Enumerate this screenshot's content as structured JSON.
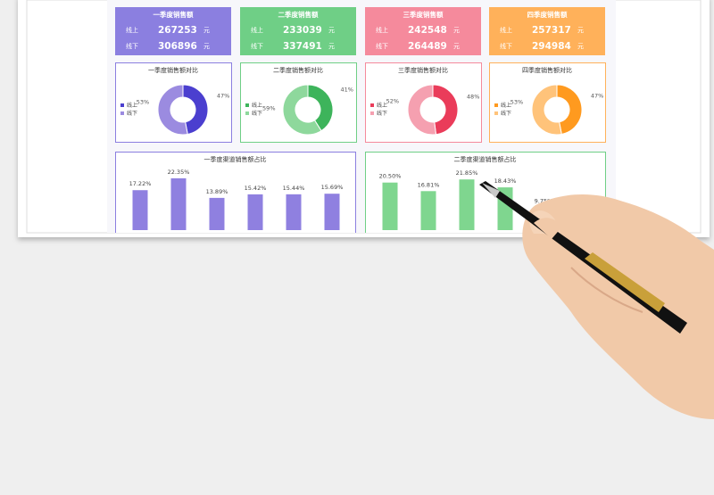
{
  "cards": [
    {
      "title": "一季度销售额",
      "color": "#8b7fe0",
      "rows": [
        {
          "label": "线上",
          "value": 267253,
          "unit": "元"
        },
        {
          "label": "线下",
          "value": 306896,
          "unit": "元"
        }
      ]
    },
    {
      "title": "二季度销售额",
      "color": "#6fcf86",
      "rows": [
        {
          "label": "线上",
          "value": 233039,
          "unit": "元"
        },
        {
          "label": "线下",
          "value": 337491,
          "unit": "元"
        }
      ]
    },
    {
      "title": "三季度销售额",
      "color": "#f58a9c",
      "rows": [
        {
          "label": "线上",
          "value": 242548,
          "unit": "元"
        },
        {
          "label": "线下",
          "value": 264489,
          "unit": "元"
        }
      ]
    },
    {
      "title": "四季度销售额",
      "color": "#ffb15a",
      "rows": [
        {
          "label": "线上",
          "value": 257317,
          "unit": "元"
        },
        {
          "label": "线下",
          "value": 294984,
          "unit": "元"
        }
      ]
    }
  ],
  "chart_data": [
    {
      "type": "pie",
      "title": "一季度销售额对比",
      "categories": [
        "线上",
        "线下"
      ],
      "values": [
        47,
        53
      ],
      "value_labels": [
        "47%",
        "53%"
      ],
      "colors": [
        "#4b3fcf",
        "#9b8be0"
      ],
      "border": "#8b7fe0"
    },
    {
      "type": "pie",
      "title": "二季度销售额对比",
      "categories": [
        "线上",
        "线下"
      ],
      "values": [
        41,
        59
      ],
      "value_labels": [
        "41%",
        "59%"
      ],
      "colors": [
        "#3db45b",
        "#8ed89c"
      ],
      "border": "#6fcf86"
    },
    {
      "type": "pie",
      "title": "三季度销售额对比",
      "categories": [
        "线上",
        "线下"
      ],
      "values": [
        48,
        52
      ],
      "value_labels": [
        "48%",
        "52%"
      ],
      "colors": [
        "#ea3c5a",
        "#f5a0b0"
      ],
      "border": "#f58a9c"
    },
    {
      "type": "pie",
      "title": "四季度销售额对比",
      "categories": [
        "线上",
        "线下"
      ],
      "values": [
        47,
        53
      ],
      "value_labels": [
        "47%",
        "53%"
      ],
      "colors": [
        "#ff9a1f",
        "#ffc37a"
      ],
      "border": "#ffb15a"
    },
    {
      "type": "bar",
      "title": "一季度渠道销售额占比",
      "categories": [
        null,
        null,
        null,
        null,
        null,
        null
      ],
      "values": [
        17.22,
        22.35,
        13.89,
        15.42,
        15.44,
        15.69
      ],
      "value_labels": [
        "17.22%",
        "22.35%",
        "13.89%",
        "15.42%",
        "15.44%",
        "15.69%"
      ],
      "color": "#8f80e0",
      "border": "#8b7fe0"
    },
    {
      "type": "bar",
      "title": "二季度渠道销售额占比",
      "categories": [
        null,
        null,
        null,
        null,
        null
      ],
      "values": [
        20.5,
        16.81,
        21.85,
        18.43,
        9.75
      ],
      "value_labels": [
        "20.50%",
        "16.81%",
        "21.85%",
        "18.43%",
        "9.75%"
      ],
      "color": "#7fd68f",
      "border": "#6fcf86"
    }
  ]
}
